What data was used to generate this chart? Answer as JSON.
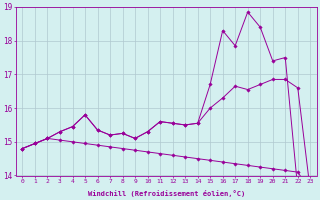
{
  "xlabel": "Windchill (Refroidissement éolien,°C)",
  "background_color": "#d4f0f0",
  "grid_color": "#b0c8d0",
  "line_color": "#990099",
  "hours": [
    0,
    1,
    2,
    3,
    4,
    5,
    6,
    7,
    8,
    9,
    10,
    11,
    12,
    13,
    14,
    15,
    16,
    17,
    18,
    19,
    20,
    21,
    22,
    23
  ],
  "line1": [
    14.8,
    14.95,
    15.1,
    15.05,
    15.0,
    14.95,
    14.9,
    14.85,
    14.8,
    14.75,
    14.7,
    14.65,
    14.6,
    14.55,
    14.5,
    14.45,
    14.4,
    14.35,
    14.3,
    14.25,
    14.2,
    14.15,
    14.1,
    13.55
  ],
  "line2": [
    14.8,
    14.95,
    15.1,
    15.3,
    15.45,
    15.8,
    15.35,
    15.2,
    15.25,
    15.1,
    15.3,
    15.6,
    15.55,
    15.5,
    15.55,
    16.0,
    16.3,
    16.65,
    16.55,
    16.7,
    16.85,
    16.85,
    16.6,
    13.55
  ],
  "line3": [
    14.8,
    14.95,
    15.1,
    15.3,
    15.45,
    15.8,
    15.35,
    15.2,
    15.25,
    15.1,
    15.3,
    15.6,
    15.55,
    15.5,
    15.55,
    16.7,
    18.3,
    17.85,
    18.85,
    18.4,
    17.4,
    17.5,
    13.6,
    13.55
  ],
  "ylim": [
    14.0,
    19.0
  ],
  "yticks": [
    14,
    15,
    16,
    17,
    18,
    19
  ],
  "xlim": [
    -0.5,
    23.5
  ],
  "xtick_fontsize": 4.5,
  "ytick_fontsize": 5.5,
  "xlabel_fontsize": 5.0
}
